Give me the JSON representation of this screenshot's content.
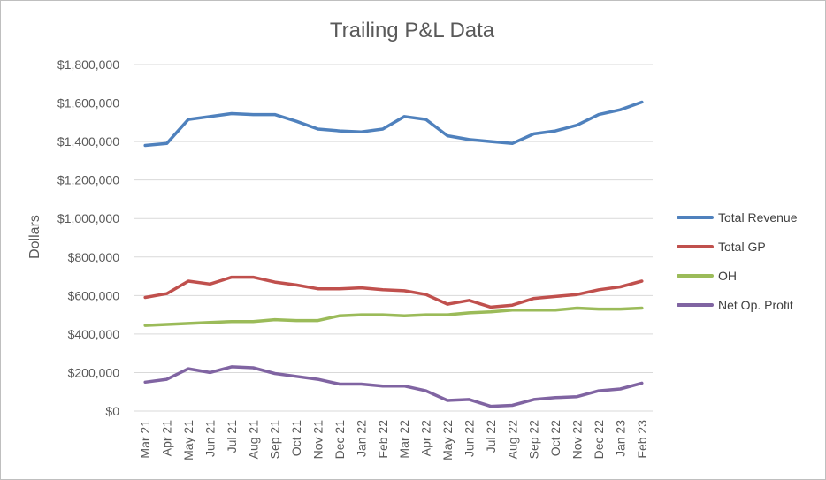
{
  "chart_data": {
    "type": "line",
    "title": "Trailing P&L Data",
    "xlabel": "",
    "ylabel": "Dollars",
    "ylim": [
      0,
      1800000
    ],
    "yticks": [
      "$0",
      "$200,000",
      "$400,000",
      "$600,000",
      "$800,000",
      "$1,000,000",
      "$1,200,000",
      "$1,400,000",
      "$1,600,000",
      "$1,800,000"
    ],
    "grid": true,
    "legend_position": "right",
    "categories": [
      "Mar 21",
      "Apr 21",
      "May 21",
      "Jun 21",
      "Jul 21",
      "Aug 21",
      "Sep 21",
      "Oct 21",
      "Nov 21",
      "Dec 21",
      "Jan 22",
      "Feb 22",
      "Mar 22",
      "Apr 22",
      "May 22",
      "Jun 22",
      "Jul 22",
      "Aug 22",
      "Sep 22",
      "Oct 22",
      "Nov 22",
      "Dec 22",
      "Jan 23",
      "Feb 23"
    ],
    "series": [
      {
        "name": "Total Revenue",
        "color": "#4f81bd",
        "values": [
          1380000,
          1390000,
          1515000,
          1530000,
          1545000,
          1540000,
          1540000,
          1505000,
          1465000,
          1455000,
          1450000,
          1465000,
          1530000,
          1515000,
          1430000,
          1410000,
          1400000,
          1390000,
          1440000,
          1455000,
          1485000,
          1540000,
          1565000,
          1605000
        ]
      },
      {
        "name": "Total GP",
        "color": "#c0504d",
        "values": [
          590000,
          610000,
          675000,
          660000,
          695000,
          695000,
          670000,
          655000,
          635000,
          635000,
          640000,
          630000,
          625000,
          605000,
          555000,
          575000,
          540000,
          550000,
          585000,
          595000,
          605000,
          630000,
          645000,
          675000
        ]
      },
      {
        "name": "OH",
        "color": "#9bbb59",
        "values": [
          445000,
          450000,
          455000,
          460000,
          465000,
          465000,
          475000,
          470000,
          470000,
          495000,
          500000,
          500000,
          495000,
          500000,
          500000,
          510000,
          515000,
          525000,
          525000,
          525000,
          535000,
          530000,
          530000,
          535000
        ]
      },
      {
        "name": "Net Op. Profit",
        "color": "#8064a2",
        "values": [
          150000,
          165000,
          220000,
          200000,
          230000,
          225000,
          195000,
          180000,
          165000,
          140000,
          140000,
          130000,
          130000,
          105000,
          55000,
          60000,
          25000,
          30000,
          60000,
          70000,
          75000,
          105000,
          115000,
          145000
        ]
      }
    ]
  }
}
